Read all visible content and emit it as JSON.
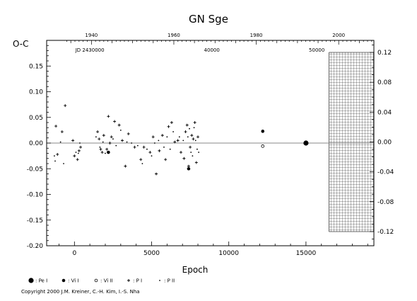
{
  "chart_data": {
    "type": "scatter",
    "title": "GN Sge",
    "xlabel": "Epoch",
    "ylabel": "O-C",
    "xlim": [
      -1800,
      19400
    ],
    "ylim": [
      -0.2,
      0.2
    ],
    "x_ticks": [
      {
        "value": 0,
        "label": "0"
      },
      {
        "value": 5000,
        "label": "5000"
      },
      {
        "value": 10000,
        "label": "10000"
      },
      {
        "value": 15000,
        "label": "15000"
      }
    ],
    "y_left_ticks": [
      {
        "value": 0.15,
        "label": "0.15"
      },
      {
        "value": 0.1,
        "label": "0.10"
      },
      {
        "value": 0.05,
        "label": "0.05"
      },
      {
        "value": 0.0,
        "label": "0.00"
      },
      {
        "value": -0.05,
        "label": "-0.05"
      },
      {
        "value": -0.1,
        "label": "-0.10"
      },
      {
        "value": -0.15,
        "label": "-0.15"
      },
      {
        "value": -0.2,
        "label": "-0.20"
      }
    ],
    "y_right_ticks": [
      {
        "value": 0.12,
        "label": "0.12"
      },
      {
        "value": 0.08,
        "label": "0.08"
      },
      {
        "value": 0.04,
        "label": "0.04"
      },
      {
        "value": 0.0,
        "label": "0.00"
      },
      {
        "value": -0.04,
        "label": "-0.04"
      },
      {
        "value": -0.08,
        "label": "-0.08"
      },
      {
        "value": -0.12,
        "label": "-0.12"
      }
    ],
    "year_ticks": [
      {
        "epoch": 1100,
        "label": "1940"
      },
      {
        "epoch": 6440,
        "label": "1960"
      },
      {
        "epoch": 11780,
        "label": "1980"
      },
      {
        "epoch": 17120,
        "label": "2000"
      }
    ],
    "jd_ticks": [
      {
        "epoch": 1000,
        "label": "JD 2430000"
      },
      {
        "epoch": 8900,
        "label": "40000"
      },
      {
        "epoch": 15700,
        "label": "50000"
      }
    ],
    "hatched_region": [
      16500,
      19400
    ],
    "legend": [
      {
        "symbol": "filled-circle-large",
        "label": ": Pe I"
      },
      {
        "symbol": "filled-circle",
        "label": ": Vi I"
      },
      {
        "symbol": "open-circle",
        "label": ": Vi II"
      },
      {
        "symbol": "plus",
        "label": ": P I"
      },
      {
        "symbol": "dot",
        "label": ": P II"
      }
    ],
    "series": [
      {
        "name": ": P I",
        "symbol": "plus",
        "points": [
          [
            -1200,
            0.033
          ],
          [
            -1100,
            -0.022
          ],
          [
            -800,
            0.022
          ],
          [
            -600,
            0.073
          ],
          [
            -100,
            0.005
          ],
          [
            0,
            -0.025
          ],
          [
            200,
            -0.032
          ],
          [
            300,
            -0.015
          ],
          [
            400,
            -0.008
          ],
          [
            1500,
            0.022
          ],
          [
            1600,
            0.008
          ],
          [
            1700,
            -0.012
          ],
          [
            1800,
            -0.018
          ],
          [
            1900,
            0.015
          ],
          [
            2100,
            -0.012
          ],
          [
            2200,
            0.052
          ],
          [
            2300,
            0.0
          ],
          [
            2400,
            0.012
          ],
          [
            2600,
            0.042
          ],
          [
            2900,
            0.035
          ],
          [
            3100,
            0.005
          ],
          [
            3300,
            -0.045
          ],
          [
            3500,
            0.018
          ],
          [
            3900,
            -0.008
          ],
          [
            4300,
            -0.032
          ],
          [
            4500,
            -0.008
          ],
          [
            4900,
            -0.018
          ],
          [
            5100,
            0.012
          ],
          [
            5300,
            -0.06
          ],
          [
            5500,
            -0.015
          ],
          [
            5700,
            0.015
          ],
          [
            5900,
            -0.032
          ],
          [
            6100,
            0.032
          ],
          [
            6300,
            0.04
          ],
          [
            6500,
            0.002
          ],
          [
            6700,
            0.005
          ],
          [
            6900,
            -0.018
          ],
          [
            7100,
            -0.03
          ],
          [
            7200,
            0.022
          ],
          [
            7300,
            0.035
          ],
          [
            7400,
            -0.045
          ],
          [
            7500,
            -0.008
          ],
          [
            7600,
            0.015
          ],
          [
            7700,
            0.008
          ],
          [
            7800,
            0.04
          ],
          [
            7900,
            -0.038
          ],
          [
            8000,
            0.012
          ]
        ]
      },
      {
        "name": ": P II",
        "symbol": "dot",
        "points": [
          [
            -1300,
            -0.025
          ],
          [
            -1250,
            -0.035
          ],
          [
            -900,
            0.002
          ],
          [
            -700,
            -0.04
          ],
          [
            100,
            -0.018
          ],
          [
            250,
            -0.02
          ],
          [
            350,
            0.0
          ],
          [
            1400,
            0.012
          ],
          [
            1650,
            -0.008
          ],
          [
            1850,
            0.002
          ],
          [
            2000,
            -0.02
          ],
          [
            2500,
            0.008
          ],
          [
            2700,
            -0.005
          ],
          [
            3000,
            0.025
          ],
          [
            3400,
            0.002
          ],
          [
            3700,
            0.0
          ],
          [
            4100,
            -0.005
          ],
          [
            4400,
            -0.04
          ],
          [
            4700,
            -0.012
          ],
          [
            5000,
            -0.025
          ],
          [
            5200,
            0.0
          ],
          [
            5450,
            0.005
          ],
          [
            5800,
            -0.008
          ],
          [
            6000,
            0.012
          ],
          [
            6200,
            -0.012
          ],
          [
            6400,
            0.022
          ],
          [
            6800,
            0.012
          ],
          [
            7050,
            0.005
          ],
          [
            7350,
            0.012
          ],
          [
            7450,
            0.028
          ],
          [
            7550,
            -0.018
          ],
          [
            7650,
            -0.025
          ],
          [
            7750,
            0.03
          ],
          [
            7850,
            0.005
          ],
          [
            7950,
            -0.012
          ],
          [
            8050,
            -0.018
          ]
        ]
      },
      {
        "name": ": Vi I",
        "symbol": "filled-circle",
        "points": [
          [
            12200,
            0.023
          ],
          [
            7400,
            -0.05
          ],
          [
            2200,
            -0.018
          ]
        ]
      },
      {
        "name": ": Vi II",
        "symbol": "open-circle",
        "points": [
          [
            12200,
            -0.006
          ]
        ]
      },
      {
        "name": ": Pe I",
        "symbol": "filled-circle-large",
        "points": [
          [
            15000,
            0.0
          ]
        ]
      }
    ]
  },
  "copyright": "Copyright 2000 J.M. Kreiner, C.-H. Kim, I.-S. Nha"
}
